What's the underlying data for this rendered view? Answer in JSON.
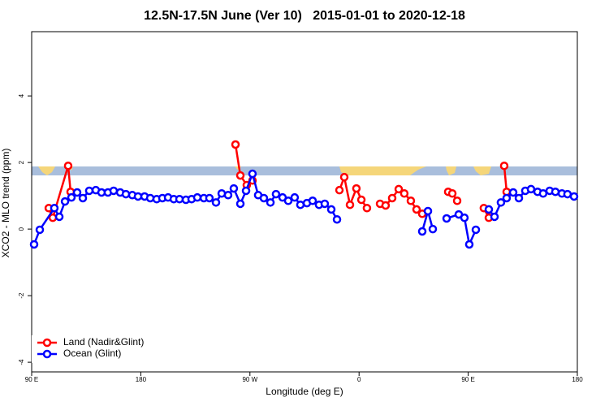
{
  "chart_data": {
    "type": "line",
    "title": "12.5N-17.5N June (Ver 10)   2015-01-01 to 2020-12-18",
    "x_label": "Longitude (deg E)",
    "y_label": "XCO2 - MLO trend (ppm)",
    "xlim": [
      90,
      540
    ],
    "ylim": [
      -4.29,
      5.93
    ],
    "xticks": [
      {
        "value": 90,
        "label": "90 E"
      },
      180,
      {
        "value": 270,
        "label": "90 W"
      },
      {
        "value": 360,
        "label": "0"
      },
      {
        "value": 450,
        "label": "90 E"
      },
      {
        "value": 540,
        "label": "180"
      }
    ],
    "yticks": [
      -4,
      -2,
      0,
      2,
      4
    ],
    "legend": "bottom-left",
    "series": [
      {
        "name": "Land (Nadir&Glint)",
        "color": "#ff0000",
        "x": [
          104.1,
          107.4,
          120.1,
          122.1,
          null,
          258.1,
          262.1,
          267.4,
          272.1,
          null,
          343.8,
          347.8,
          352.5,
          357.8,
          361.9,
          366.5,
          null,
          377.3,
          381.9,
          387.3,
          392.7,
          397.3,
          402.7,
          407.4,
          412.1,
          null,
          433.5,
          436.9,
          440.9,
          null,
          462.9,
          467.0,
          null,
          479.7,
          481.7
        ],
        "values": [
          0.63,
          0.34,
          1.9,
          1.12,
          null,
          2.54,
          1.61,
          1.32,
          1.46,
          null,
          1.17,
          1.56,
          0.73,
          1.22,
          0.88,
          0.63,
          null,
          0.76,
          0.71,
          0.93,
          1.2,
          1.07,
          0.85,
          0.59,
          0.46,
          null,
          1.12,
          1.07,
          0.85,
          null,
          0.63,
          0.34,
          null,
          1.9,
          1.12
        ]
      },
      {
        "name": "Ocean (Glint)",
        "color": "#0000ff",
        "x": [
          92.0,
          96.7,
          108.7,
          112.8,
          117.5,
          122.8,
          127.5,
          132.2,
          137.5,
          142.9,
          147.6,
          152.9,
          157.6,
          163.0,
          167.7,
          173.0,
          177.7,
          183.1,
          187.8,
          193.1,
          197.8,
          202.5,
          207.2,
          211.9,
          217.2,
          221.9,
          226.6,
          232.0,
          236.6,
          242.0,
          246.7,
          252.0,
          256.7,
          262.1,
          266.8,
          272.1,
          276.8,
          281.5,
          286.9,
          291.5,
          296.9,
          301.6,
          306.9,
          311.6,
          317.0,
          321.7,
          327.0,
          331.7,
          337.1,
          341.8,
          null,
          412.1,
          416.8,
          420.8,
          null,
          432.2,
          442.2,
          446.9,
          450.9,
          456.3,
          null,
          467.0,
          471.7,
          477.0,
          481.7,
          487.1,
          491.8,
          497.1,
          501.8,
          507.2,
          511.8,
          517.2,
          521.9,
          527.3,
          531.9,
          537.3
        ],
        "values": [
          -0.46,
          -0.02,
          0.63,
          0.37,
          0.83,
          0.95,
          1.1,
          0.93,
          1.15,
          1.17,
          1.1,
          1.1,
          1.15,
          1.1,
          1.05,
          1.02,
          0.98,
          0.98,
          0.93,
          0.9,
          0.93,
          0.95,
          0.9,
          0.9,
          0.88,
          0.9,
          0.95,
          0.93,
          0.93,
          0.8,
          1.07,
          1.02,
          1.22,
          0.76,
          1.15,
          1.66,
          1.02,
          0.93,
          0.8,
          1.05,
          0.95,
          0.85,
          0.95,
          0.73,
          0.78,
          0.85,
          0.73,
          0.76,
          0.59,
          0.29,
          null,
          -0.07,
          0.54,
          0.0,
          null,
          0.32,
          0.44,
          0.34,
          -0.46,
          -0.02,
          null,
          0.59,
          0.37,
          0.8,
          0.93,
          1.1,
          0.93,
          1.15,
          1.2,
          1.12,
          1.07,
          1.15,
          1.12,
          1.07,
          1.05,
          0.98
        ]
      }
    ]
  }
}
